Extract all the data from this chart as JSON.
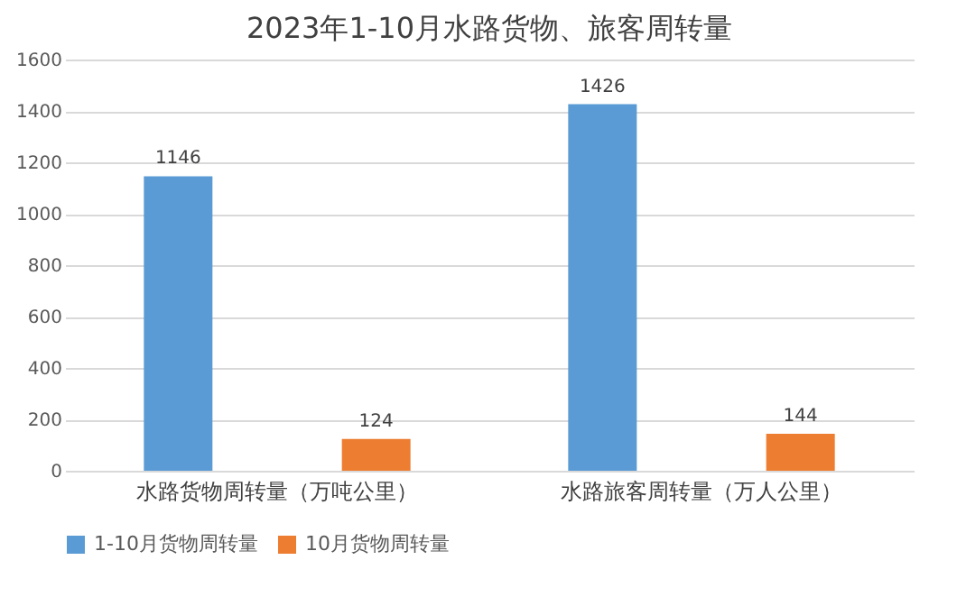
{
  "chart_data": {
    "type": "bar",
    "title": "2023年1-10月水路货物、旅客周转量",
    "categories": [
      "水路货物周转量（万吨公里）",
      "水路旅客周转量（万人公里）"
    ],
    "series": [
      {
        "name": "1-10月货物周转量",
        "color": "#5b9bd5",
        "values": [
          1146,
          1426
        ]
      },
      {
        "name": "10月货物周转量",
        "color": "#ed7d31",
        "values": [
          124,
          144
        ]
      }
    ],
    "ylim": [
      0,
      1600
    ],
    "yticks": [
      0,
      200,
      400,
      600,
      800,
      1000,
      1200,
      1400,
      1600
    ],
    "grid": "y",
    "legend": "bottom",
    "data_labels": true
  }
}
